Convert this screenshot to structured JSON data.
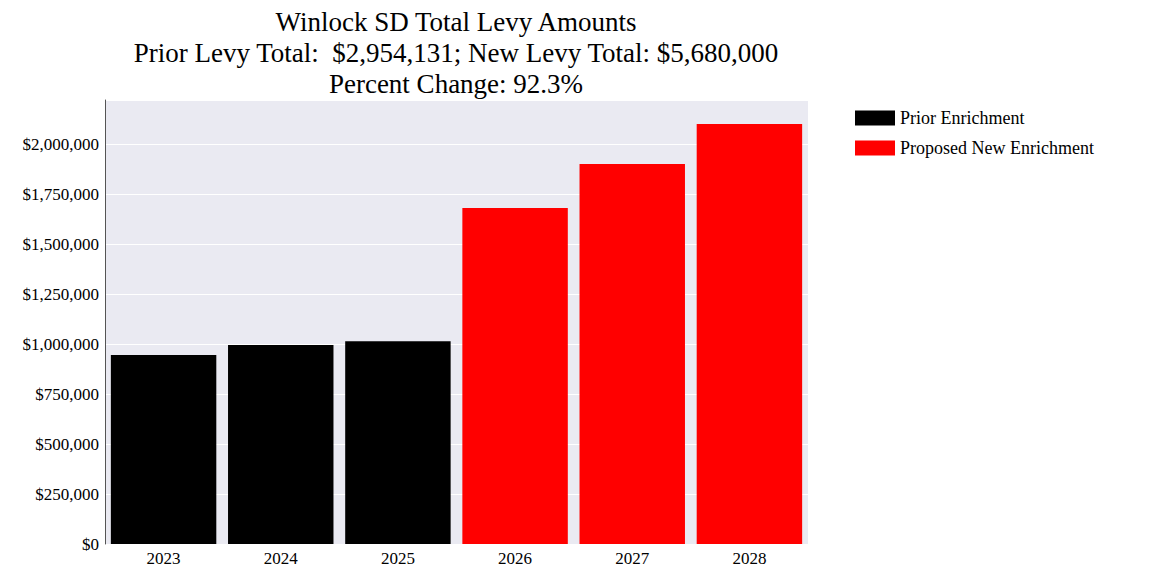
{
  "chart_data": {
    "type": "bar",
    "title": "Winlock SD Total Levy Amounts\nPrior Levy Total:  $2,954,131; New Levy Total: $5,680,000\nPercent Change: 92.3%",
    "categories": [
      "2023",
      "2024",
      "2025",
      "2026",
      "2027",
      "2028"
    ],
    "series": [
      {
        "name": "Prior Enrichment",
        "color": "#000000",
        "values": [
          945000,
          995000,
          1014131,
          null,
          null,
          null
        ]
      },
      {
        "name": "Proposed New Enrichment",
        "color": "#ff0000",
        "values": [
          null,
          null,
          null,
          1680000,
          1900000,
          2100000
        ]
      }
    ],
    "ylim": [
      0,
      2220000
    ],
    "yticks": [
      {
        "value": 0,
        "label": "$0"
      },
      {
        "value": 250000,
        "label": "$250,000"
      },
      {
        "value": 500000,
        "label": "$500,000"
      },
      {
        "value": 750000,
        "label": "$750,000"
      },
      {
        "value": 1000000,
        "label": "$1,000,000"
      },
      {
        "value": 1250000,
        "label": "$1,250,000"
      },
      {
        "value": 1500000,
        "label": "$1,500,000"
      },
      {
        "value": 1750000,
        "label": "$1,750,000"
      },
      {
        "value": 2000000,
        "label": "$2,000,000"
      }
    ],
    "grid": true,
    "legend": "right"
  }
}
